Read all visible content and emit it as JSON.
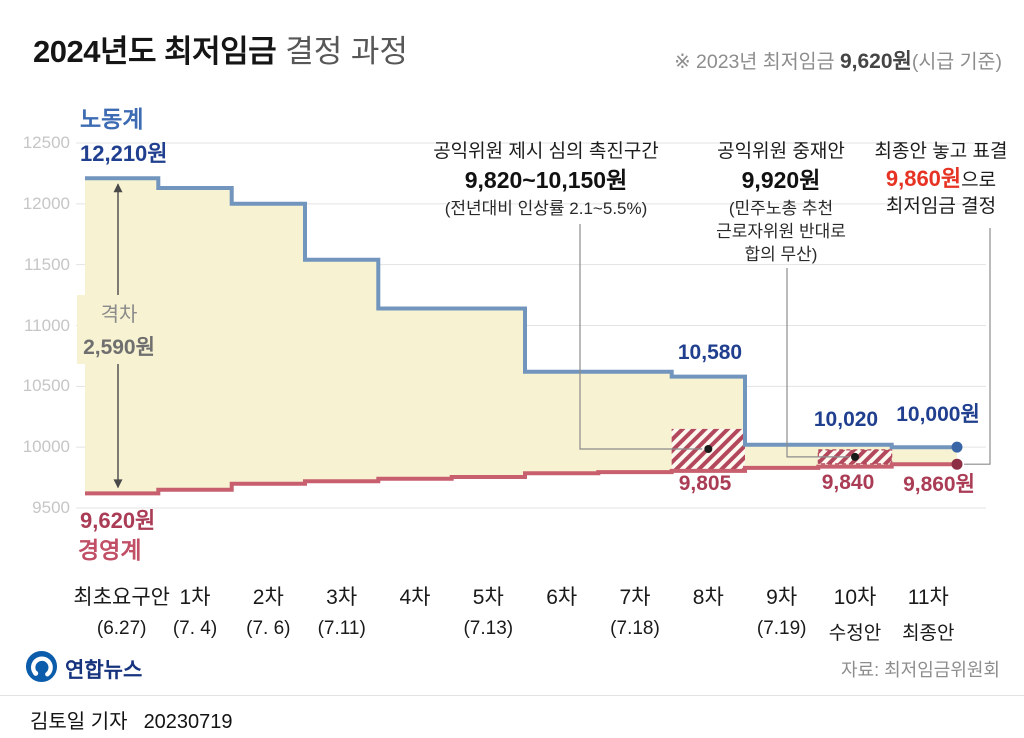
{
  "header": {
    "title_main": "2024년도 최저임금",
    "title_sub": "결정 과정",
    "note_prefix": "※ 2023년 최저임금 ",
    "note_value": "9,620원",
    "note_suffix": "(시급 기준)"
  },
  "chart_data": {
    "type": "line",
    "subtype": "step",
    "title": "2024년도 최저임금 결정 과정",
    "xlabel": "",
    "ylabel": "원",
    "ylim": [
      9500,
      12500
    ],
    "grid": true,
    "legend_position": "on-chart",
    "categories": [
      {
        "name": "최초요구안",
        "date": "(6.27)"
      },
      {
        "name": "1차",
        "date": "(7. 4)"
      },
      {
        "name": "2차",
        "date": "(7. 6)"
      },
      {
        "name": "3차",
        "date": "(7.11)"
      },
      {
        "name": "4차",
        "date": ""
      },
      {
        "name": "5차",
        "date": "(7.13)"
      },
      {
        "name": "6차",
        "date": ""
      },
      {
        "name": "7차",
        "date": "(7.18)"
      },
      {
        "name": "8차",
        "date": ""
      },
      {
        "name": "9차",
        "date": "(7.19)"
      },
      {
        "name": "10차",
        "date": "수정안"
      },
      {
        "name": "11차",
        "date": "최종안"
      }
    ],
    "yticks": [
      12500,
      12000,
      11500,
      11000,
      10500,
      10000,
      9500
    ],
    "series": [
      {
        "name": "노동계",
        "color": "#7195bd",
        "values": [
          12210,
          12130,
          12000,
          11540,
          11140,
          11140,
          10620,
          10620,
          10580,
          10020,
          10020,
          10000
        ]
      },
      {
        "name": "경영계",
        "color": "#c75f6e",
        "values": [
          9620,
          9650,
          9700,
          9720,
          9740,
          9755,
          9785,
          9795,
          9805,
          9830,
          9840,
          9860
        ]
      }
    ]
  },
  "labels": {
    "labor": "노동계",
    "labor_start": "12,210원",
    "mgmt": "경영계",
    "mgmt_start": "9,620원",
    "gap_title": "격차",
    "gap_value": "2,590원",
    "p10580": "10,580",
    "p10020": "10,020",
    "p10000": "10,000원",
    "p9805": "9,805",
    "p9840": "9,840",
    "p9860": "9,860원"
  },
  "annotations": {
    "promote": {
      "line1": "공익위원 제시 심의 촉진구간",
      "line2": "9,820~10,150원",
      "line3": "(전년대비 인상률 2.1~5.5%)",
      "value_from": 9820,
      "value_to": 10150,
      "cat_from": 8,
      "cat_to": 9
    },
    "mediation": {
      "line1": "공익위원 중재안",
      "line2": "9,920원",
      "line3": "(민주노총 추천",
      "line4": "근로자위원 반대로",
      "line5": "합의 무산)",
      "value": 9920,
      "cat_from": 10,
      "cat_to": 11
    },
    "final": {
      "line1": "최종안 놓고 표결",
      "value": "9,860원",
      "value_suffix": "으로",
      "line3": "최저임금 결정"
    },
    "gap": {
      "category": 0,
      "from_value": 12210,
      "to_value": 9620,
      "gap_value": 2590
    }
  },
  "colors": {
    "labor_line": "#7195bd",
    "labor_text": "#203f8f",
    "labor_name": "#3d6cb3",
    "mgmt_line": "#c75f6e",
    "mgmt_text": "#aa3c55",
    "final_red": "#e63323",
    "area_fill": "#f7f2d2",
    "hatch": "#b3485c",
    "grid": "#e3e3e3"
  },
  "footer": {
    "logo_text": "연합뉴스",
    "source": "자료: 최저임금위원회",
    "byline": "김토일 기자",
    "date": "20230719"
  }
}
